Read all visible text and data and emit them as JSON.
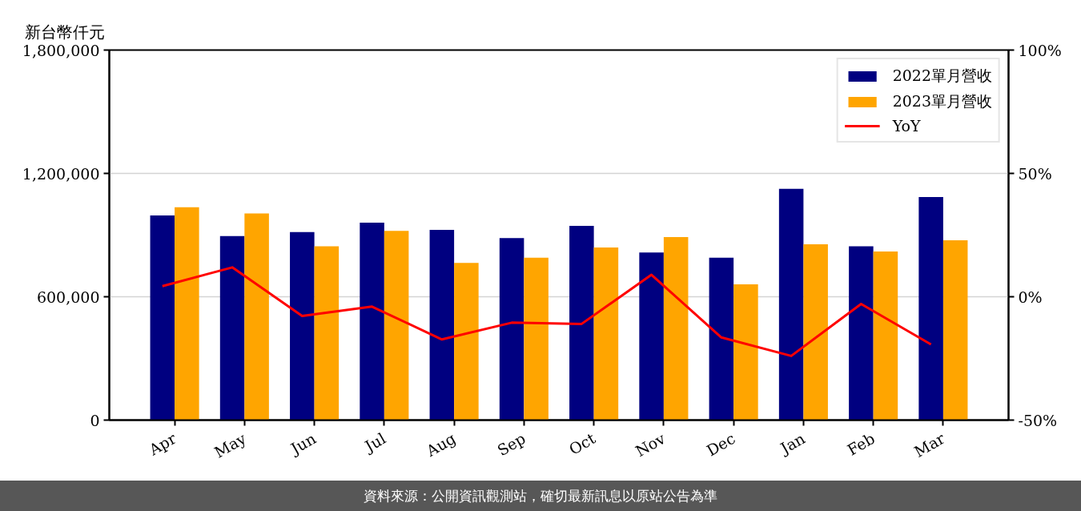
{
  "chart_data": {
    "type": "bar",
    "ylabel": "新台幣仟元",
    "categories": [
      "Apr",
      "May",
      "Jun",
      "Jul",
      "Aug",
      "Sep",
      "Oct",
      "Nov",
      "Dec",
      "Jan",
      "Feb",
      "Mar"
    ],
    "series": [
      {
        "name": "2022單月營收",
        "color": "#000080",
        "values": [
          995000,
          895000,
          915000,
          960000,
          925000,
          885000,
          945000,
          815000,
          790000,
          1125000,
          845000,
          1085000
        ]
      },
      {
        "name": "2023單月營收",
        "color": "#ffa500",
        "values": [
          1035000,
          1005000,
          845000,
          920000,
          765000,
          790000,
          840000,
          890000,
          660000,
          855000,
          820000,
          875000
        ]
      },
      {
        "name": "YoY",
        "type": "line",
        "axis": "y2",
        "color": "#ff0000",
        "values": [
          4.3,
          11.9,
          -7.8,
          -4.0,
          -17.3,
          -10.5,
          -11.0,
          8.9,
          -16.5,
          -24.0,
          -2.9,
          -19.3
        ]
      }
    ],
    "ylim": [
      0,
      1800000
    ],
    "yticks": [
      {
        "value": 0,
        "label": "0"
      },
      {
        "value": 600000,
        "label": "600,000"
      },
      {
        "value": 1200000,
        "label": "1,200,000"
      },
      {
        "value": 1800000,
        "label": "1,800,000"
      }
    ],
    "y2lim": [
      -50,
      100
    ],
    "y2ticks": [
      {
        "value": -50,
        "label": "-50%"
      },
      {
        "value": 0,
        "label": "0%"
      },
      {
        "value": 50,
        "label": "50%"
      },
      {
        "value": 100,
        "label": "100%"
      }
    ],
    "grid": "y",
    "legend": "top right",
    "annotations": [
      "資料來源：公開資訊觀測站，確切最新訊息以原站公告為準"
    ]
  }
}
